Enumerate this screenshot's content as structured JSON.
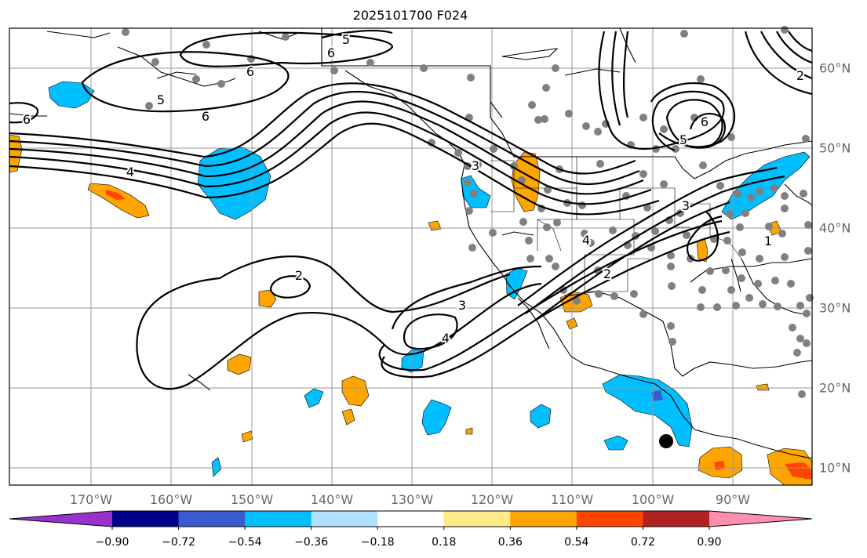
{
  "title": "2025101700 F024",
  "lon_labels": [
    "170°W",
    "160°W",
    "150°W",
    "140°W",
    "130°W",
    "120°W",
    "110°W",
    "100°W",
    "90°W"
  ],
  "lat_labels": [
    "60°N",
    "50°N",
    "40°N",
    "30°N",
    "20°N",
    "10°N"
  ],
  "contour_labels": [
    "5",
    "6",
    "6",
    "5",
    "6",
    "6",
    "4",
    "2",
    "3",
    "4",
    "3",
    "4",
    "2",
    "6",
    "5",
    "3",
    "1",
    "2"
  ],
  "colorbar": {
    "tick_labels": [
      "−0.90",
      "−0.72",
      "−0.54",
      "−0.36",
      "−0.18",
      "0.18",
      "0.36",
      "0.54",
      "0.72",
      "0.90"
    ],
    "colors": [
      "#9932cc",
      "#00008b",
      "#3a5bd0",
      "#00bfff",
      "#b0e0ff",
      "#ffffff",
      "#ffea8a",
      "#ffa500",
      "#ff4500",
      "#b22222",
      "#ff8fb0"
    ]
  },
  "colors": {
    "land_outline": "#000000",
    "grid": "#999999",
    "station_dot": "#808080",
    "positive": "#ffa500",
    "negative": "#00bfff"
  }
}
